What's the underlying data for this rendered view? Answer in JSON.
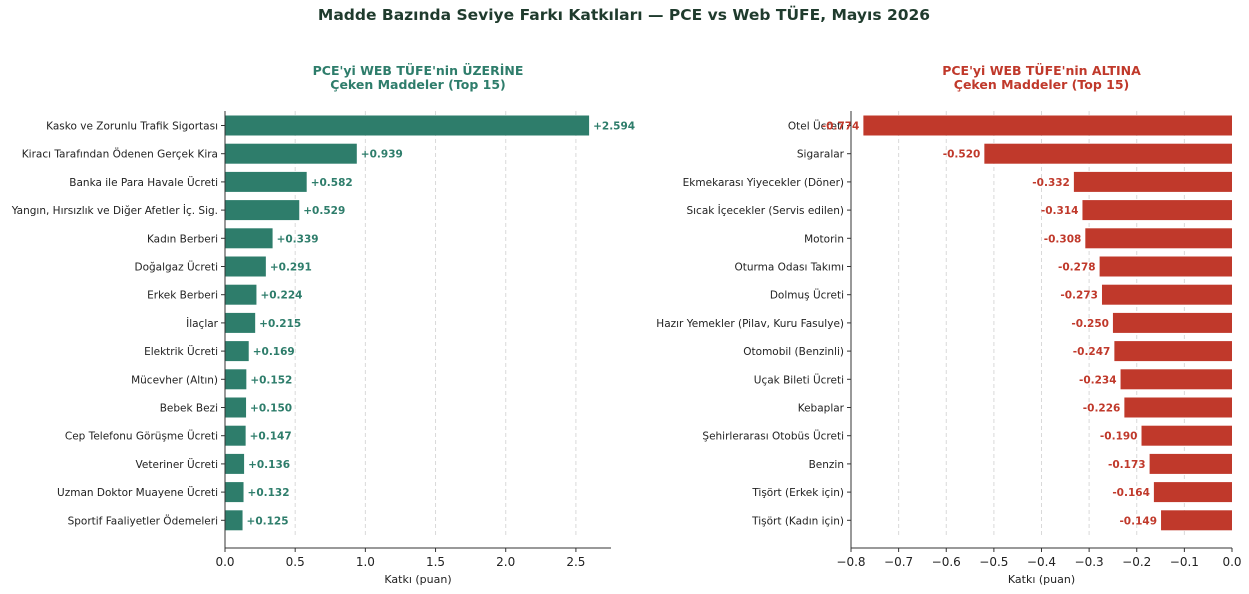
{
  "suptitle": "Madde Bazında Seviye Farkı Katkıları — PCE vs Web TÜFE, Mayıs 2026",
  "colors": {
    "positive": "#2e7d6b",
    "negative": "#c0392b",
    "suptitle": "#1f3b2d"
  },
  "chart_data": [
    {
      "type": "bar",
      "orientation": "horizontal",
      "title_lines": [
        "PCE'yi WEB TÜFE'nin ÜZERİNE",
        "Çeken Maddeler (Top 15)"
      ],
      "xlabel": "Katkı (puan)",
      "xlim": [
        0,
        2.75
      ],
      "xticks": [
        0,
        0.5,
        1,
        1.5,
        2,
        2.5
      ],
      "xtick_labels": [
        "0.0",
        "0.5",
        "1.0",
        "1.5",
        "2.0",
        "2.5"
      ],
      "grid": "x-dashed",
      "categories": [
        "Kasko ve Zorunlu Trafik Sigortası",
        "Kiracı Tarafından Ödenen Gerçek Kira",
        "Banka ile Para Havale Ücreti",
        "Yangın, Hırsızlık ve Diğer Afetler İç. Sig.",
        "Kadın Berberi",
        "Doğalgaz Ücreti",
        "Erkek Berberi",
        "İlaçlar",
        "Elektrik Ücreti",
        "Mücevher (Altın)",
        "Bebek Bezi",
        "Cep Telefonu Görüşme Ücreti",
        "Veteriner Ücreti",
        "Uzman Doktor Muayene Ücreti",
        "Sportif Faaliyetler Ödemeleri"
      ],
      "values": [
        2.594,
        0.939,
        0.582,
        0.529,
        0.339,
        0.291,
        0.224,
        0.215,
        0.169,
        0.152,
        0.15,
        0.147,
        0.136,
        0.132,
        0.125
      ],
      "value_labels": [
        "+2.594",
        "+0.939",
        "+0.582",
        "+0.529",
        "+0.339",
        "+0.291",
        "+0.224",
        "+0.215",
        "+0.169",
        "+0.152",
        "+0.150",
        "+0.147",
        "+0.136",
        "+0.132",
        "+0.125"
      ]
    },
    {
      "type": "bar",
      "orientation": "horizontal",
      "title_lines": [
        "PCE'yi WEB TÜFE'nin ALTINA",
        "Çeken Maddeler (Top 15)"
      ],
      "xlabel": "Katkı (puan)",
      "xlim": [
        -0.8,
        0.0
      ],
      "xticks": [
        -0.8,
        -0.7,
        -0.6,
        -0.5,
        -0.4,
        -0.3,
        -0.2,
        -0.1,
        0.0
      ],
      "xtick_labels": [
        "−0.8",
        "−0.7",
        "−0.6",
        "−0.5",
        "−0.4",
        "−0.3",
        "−0.2",
        "−0.1",
        "0.0"
      ],
      "grid": "x-dashed",
      "categories": [
        "Otel Ücreti",
        "Sigaralar",
        "Ekmekarası Yiyecekler (Döner)",
        "Sıcak İçecekler (Servis edilen)",
        "Motorin",
        "Oturma Odası Takımı",
        "Dolmuş Ücreti",
        "Hazır Yemekler (Pilav, Kuru Fasulye)",
        "Otomobil (Benzinli)",
        "Uçak Bileti Ücreti",
        "Kebaplar",
        "Şehirlerarası Otobüs Ücreti",
        "Benzin",
        "Tişört (Erkek için)",
        "Tişört (Kadın için)"
      ],
      "values": [
        -0.774,
        -0.52,
        -0.332,
        -0.314,
        -0.308,
        -0.278,
        -0.273,
        -0.25,
        -0.247,
        -0.234,
        -0.226,
        -0.19,
        -0.173,
        -0.164,
        -0.149
      ],
      "value_labels": [
        "-0.774",
        "-0.520",
        "-0.332",
        "-0.314",
        "-0.308",
        "-0.278",
        "-0.273",
        "-0.250",
        "-0.247",
        "-0.234",
        "-0.226",
        "-0.190",
        "-0.173",
        "-0.164",
        "-0.149"
      ]
    }
  ]
}
